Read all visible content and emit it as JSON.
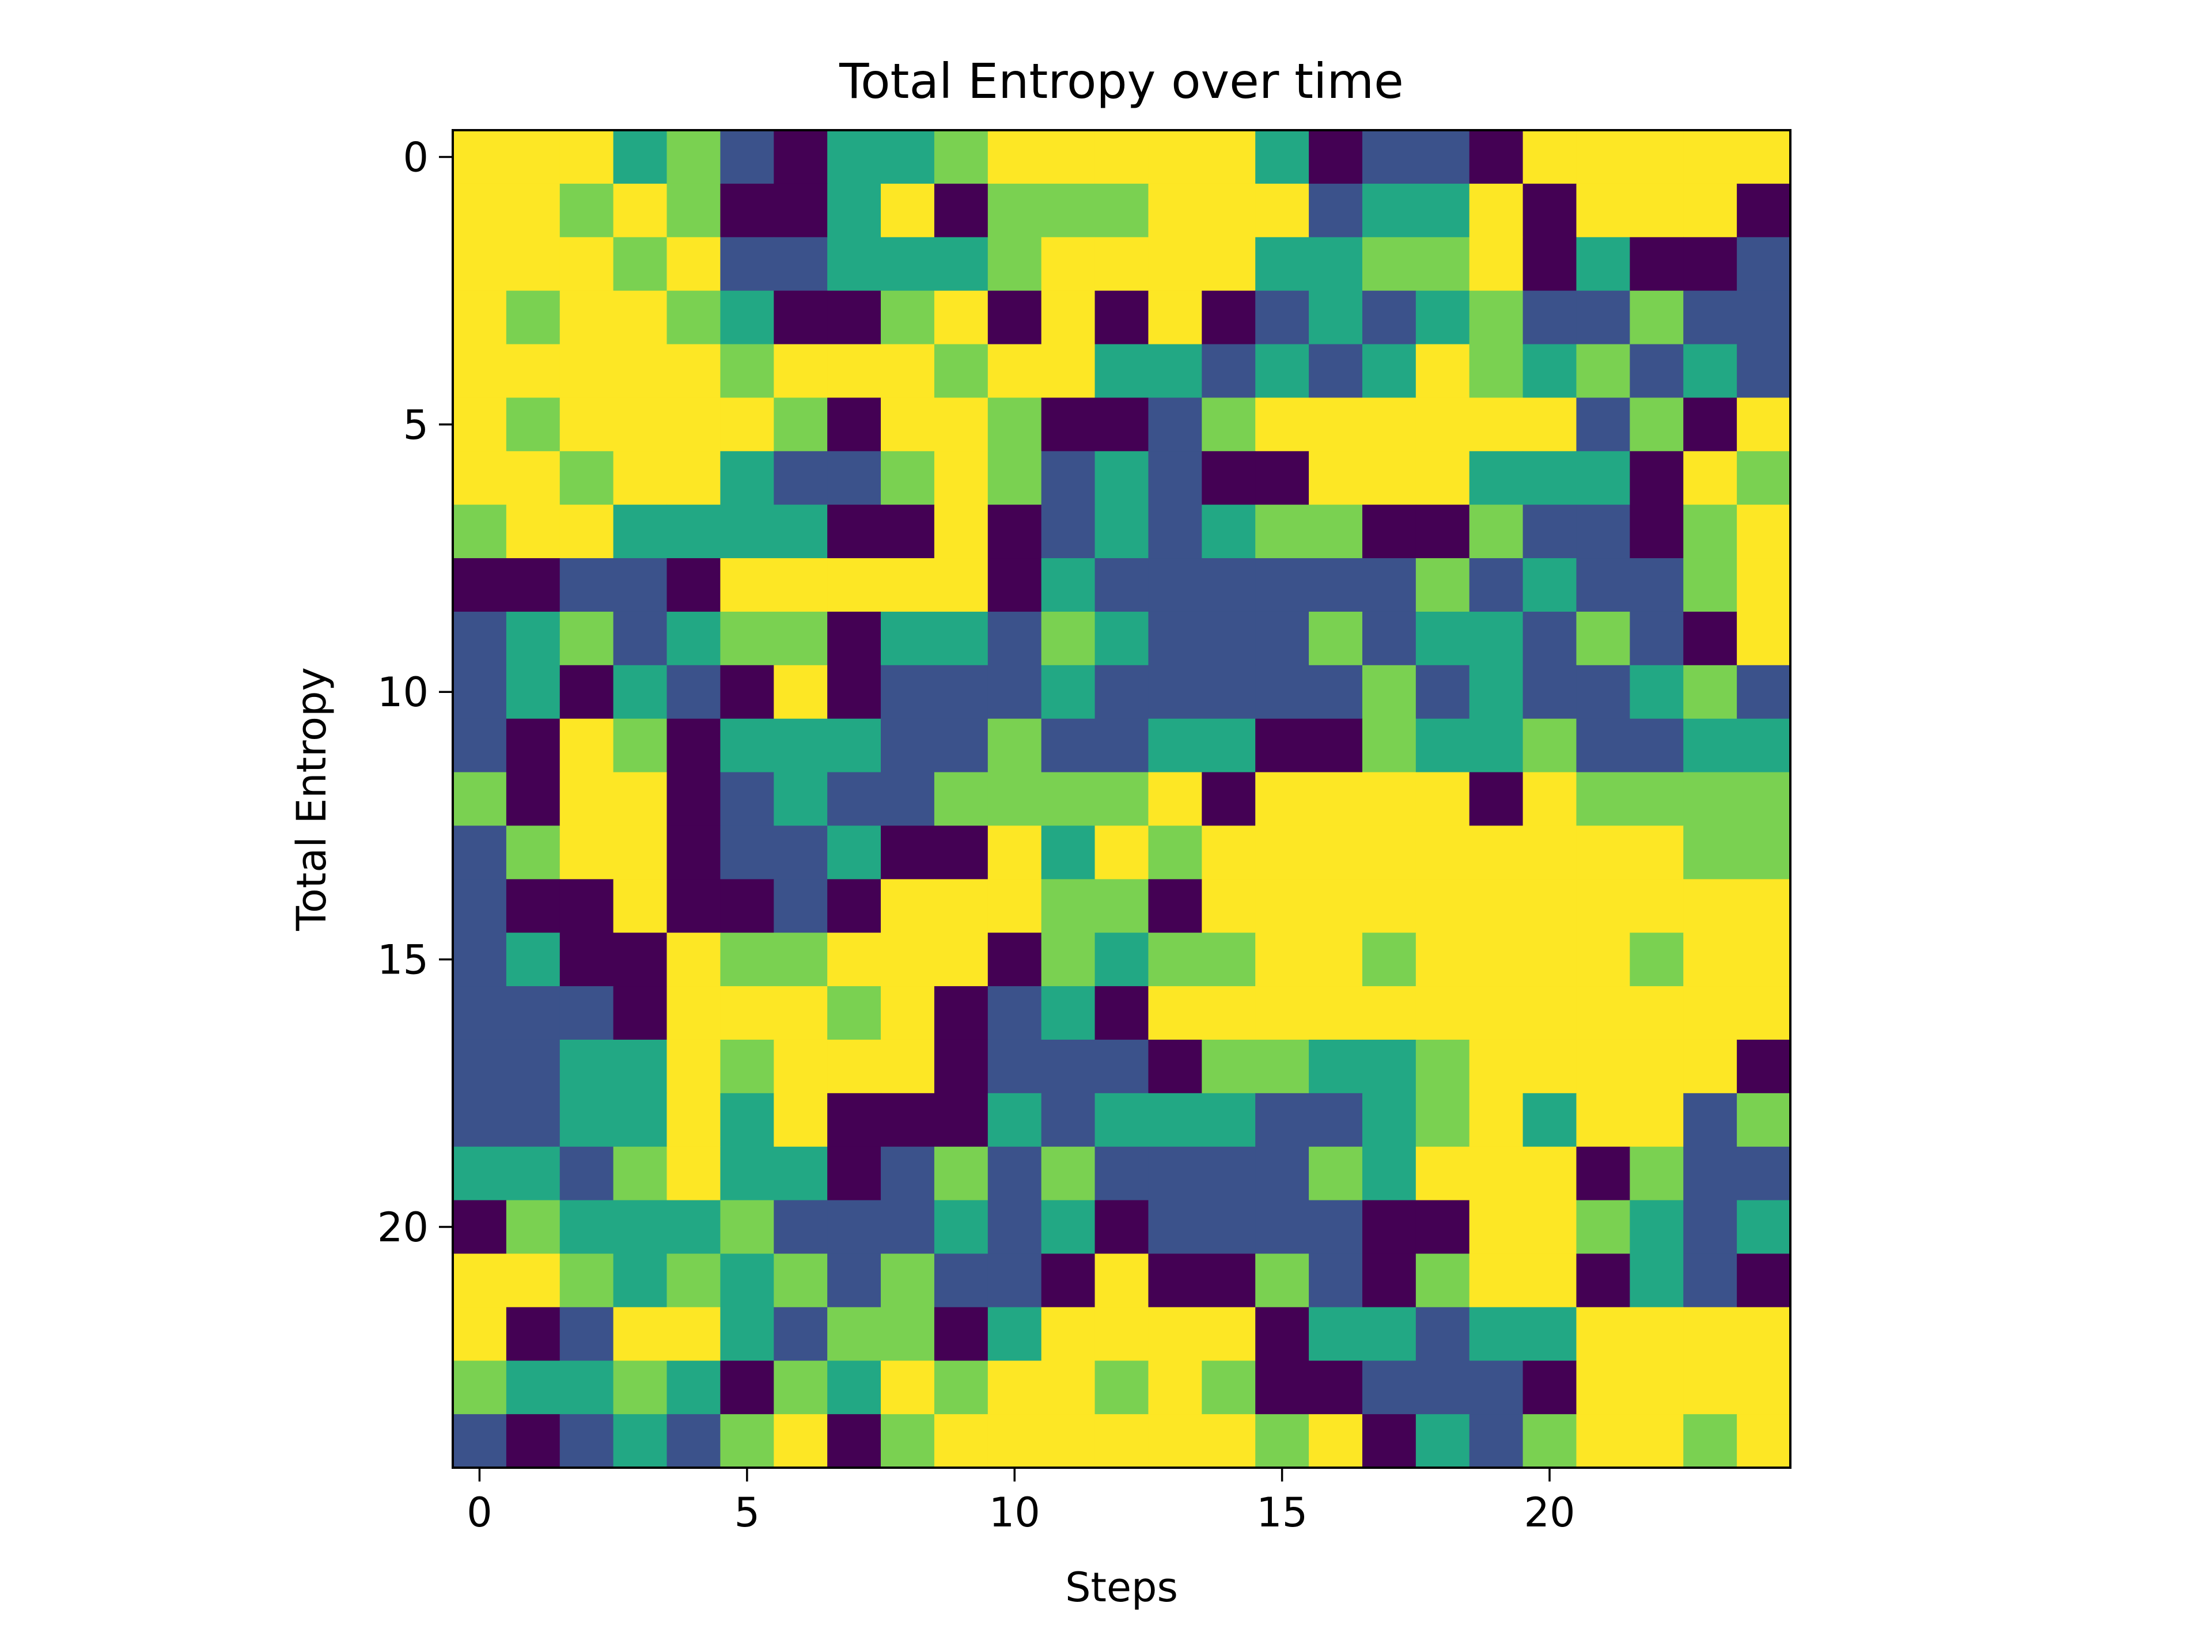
{
  "chart_data": {
    "type": "heatmap",
    "title": "Total Entropy over time",
    "xlabel": "Steps",
    "ylabel": "Total Entropy",
    "x_ticks": [
      0,
      5,
      10,
      15,
      20
    ],
    "y_ticks": [
      0,
      5,
      10,
      15,
      20
    ],
    "x_tick_labels": [
      "0",
      "5",
      "10",
      "15",
      "20"
    ],
    "y_tick_labels": [
      "0",
      "5",
      "10",
      "15",
      "20"
    ],
    "xlim": [
      -0.5,
      24.5
    ],
    "ylim": [
      24.5,
      -0.5
    ],
    "value_range": [
      0,
      4
    ],
    "colormap": [
      "#440154",
      "#3b528b",
      "#2a788e",
      "#22a884",
      "#7ad151",
      "#fde725"
    ],
    "grid": false,
    "values": [
      [
        5,
        5,
        4,
        2,
        3,
        1,
        0,
        2,
        2,
        3,
        5,
        5,
        5,
        5,
        4,
        2,
        0,
        1,
        1,
        0,
        5,
        5,
        4,
        5,
        4
      ],
      [
        5,
        5,
        3,
        4,
        3,
        0,
        0,
        2,
        4,
        0,
        3,
        3,
        3,
        5,
        4,
        4,
        1,
        2,
        2,
        4,
        0,
        4,
        4,
        4,
        0
      ],
      [
        5,
        5,
        5,
        3,
        5,
        1,
        1,
        2,
        2,
        2,
        3,
        5,
        5,
        5,
        4,
        2,
        2,
        3,
        3,
        4,
        0,
        2,
        0,
        0,
        1
      ],
      [
        4,
        3,
        5,
        5,
        3,
        2,
        0,
        0,
        3,
        4,
        0,
        5,
        0,
        4,
        0,
        1,
        2,
        1,
        2,
        3,
        1,
        1,
        3,
        1,
        1
      ],
      [
        4,
        5,
        5,
        5,
        5,
        3,
        5,
        4,
        4,
        3,
        5,
        5,
        2,
        2,
        1,
        2,
        1,
        2,
        4,
        3,
        2,
        3,
        1,
        2,
        1
      ],
      [
        5,
        3,
        5,
        5,
        4,
        4,
        3,
        0,
        4,
        4,
        3,
        0,
        0,
        1,
        3,
        4,
        4,
        4,
        4,
        4,
        4,
        1,
        3,
        0,
        4
      ],
      [
        5,
        4,
        3,
        4,
        4,
        2,
        1,
        1,
        3,
        5,
        3,
        1,
        2,
        1,
        0,
        0,
        5,
        5,
        4,
        2,
        2,
        2,
        0,
        5,
        3
      ],
      [
        3,
        4,
        4,
        2,
        2,
        2,
        2,
        0,
        0,
        5,
        0,
        1,
        2,
        1,
        2,
        3,
        3,
        0,
        0,
        3,
        1,
        1,
        0,
        3,
        5
      ],
      [
        0,
        0,
        1,
        1,
        0,
        4,
        4,
        4,
        4,
        4,
        0,
        2,
        1,
        1,
        1,
        1,
        1,
        1,
        3,
        1,
        2,
        1,
        1,
        3,
        5
      ],
      [
        1,
        2,
        3,
        1,
        2,
        3,
        3,
        0,
        2,
        2,
        1,
        3,
        2,
        1,
        1,
        1,
        3,
        1,
        2,
        2,
        1,
        3,
        1,
        0,
        4
      ],
      [
        1,
        2,
        0,
        2,
        1,
        0,
        4,
        0,
        1,
        1,
        1,
        2,
        1,
        1,
        1,
        1,
        1,
        3,
        1,
        2,
        1,
        1,
        2,
        3,
        1
      ],
      [
        1,
        0,
        4,
        3,
        0,
        2,
        2,
        2,
        1,
        1,
        3,
        1,
        1,
        2,
        2,
        0,
        0,
        3,
        2,
        2,
        3,
        1,
        1,
        2,
        2
      ],
      [
        3,
        0,
        5,
        4,
        0,
        1,
        2,
        1,
        1,
        3,
        3,
        3,
        3,
        4,
        0,
        4,
        5,
        4,
        4,
        0,
        4,
        3,
        3,
        3,
        3
      ],
      [
        1,
        3,
        5,
        4,
        0,
        1,
        1,
        2,
        0,
        0,
        4,
        2,
        4,
        3,
        4,
        5,
        5,
        5,
        5,
        5,
        5,
        4,
        5,
        3,
        3
      ],
      [
        1,
        0,
        0,
        5,
        0,
        0,
        1,
        0,
        4,
        4,
        4,
        3,
        3,
        0,
        5,
        5,
        5,
        5,
        5,
        5,
        4,
        5,
        4,
        4,
        4
      ],
      [
        1,
        2,
        0,
        0,
        5,
        3,
        3,
        4,
        5,
        5,
        0,
        3,
        2,
        3,
        3,
        5,
        4,
        3,
        4,
        4,
        4,
        5,
        3,
        5,
        5
      ],
      [
        1,
        1,
        1,
        0,
        5,
        4,
        5,
        3,
        4,
        0,
        1,
        2,
        0,
        4,
        4,
        5,
        5,
        4,
        4,
        4,
        5,
        5,
        5,
        4,
        5
      ],
      [
        1,
        1,
        2,
        2,
        4,
        3,
        5,
        5,
        5,
        0,
        1,
        1,
        1,
        0,
        3,
        3,
        2,
        2,
        3,
        5,
        4,
        4,
        5,
        5,
        0
      ],
      [
        1,
        1,
        2,
        2,
        4,
        2,
        4,
        0,
        0,
        0,
        2,
        1,
        2,
        2,
        2,
        1,
        1,
        2,
        3,
        4,
        2,
        4,
        5,
        1,
        3
      ],
      [
        2,
        2,
        1,
        3,
        4,
        2,
        2,
        0,
        1,
        3,
        1,
        3,
        1,
        1,
        1,
        1,
        3,
        2,
        4,
        4,
        4,
        0,
        3,
        1,
        1
      ],
      [
        0,
        3,
        2,
        2,
        2,
        3,
        1,
        1,
        1,
        2,
        1,
        2,
        0,
        1,
        1,
        1,
        1,
        0,
        0,
        4,
        4,
        3,
        2,
        1,
        2
      ],
      [
        5,
        4,
        3,
        2,
        3,
        2,
        3,
        1,
        3,
        1,
        1,
        0,
        4,
        0,
        0,
        3,
        1,
        0,
        3,
        4,
        4,
        0,
        2,
        1,
        0
      ],
      [
        5,
        0,
        1,
        4,
        4,
        2,
        1,
        3,
        3,
        0,
        2,
        4,
        5,
        5,
        5,
        0,
        2,
        2,
        1,
        2,
        2,
        4,
        4,
        5,
        4
      ],
      [
        3,
        2,
        2,
        3,
        2,
        0,
        3,
        2,
        4,
        3,
        4,
        5,
        3,
        5,
        3,
        0,
        0,
        1,
        1,
        1,
        0,
        4,
        5,
        4,
        5
      ],
      [
        1,
        0,
        1,
        2,
        1,
        3,
        4,
        0,
        3,
        4,
        5,
        5,
        4,
        4,
        4,
        3,
        4,
        0,
        2,
        1,
        3,
        5,
        4,
        3,
        5
      ]
    ]
  }
}
